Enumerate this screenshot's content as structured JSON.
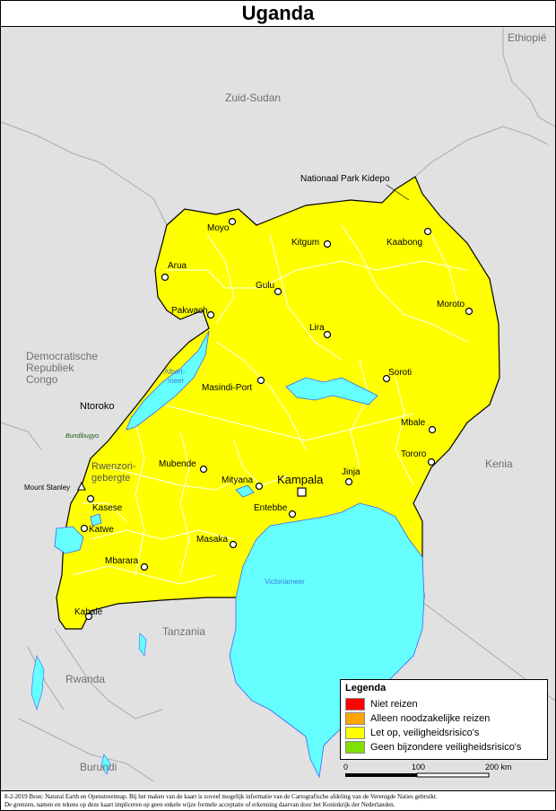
{
  "title": "Uganda",
  "countries": {
    "ethiopia": "Ethiopië",
    "south_sudan": "Zuid-Sudan",
    "drc_line1": "Democratische",
    "drc_line2": "Republiek",
    "drc_line3": "Congo",
    "kenya": "Kenia",
    "tanzania": "Tanzania",
    "rwanda": "Rwanda",
    "burundi": "Burundi"
  },
  "places": {
    "kidepo": "Nationaal Park Kidepo",
    "moyo": "Moyo",
    "arua": "Arua",
    "pakwach": "Pakwach",
    "gulu": "Gulu",
    "kitgum": "Kitgum",
    "kaabong": "Kaabong",
    "moroto": "Moroto",
    "lira": "Lira",
    "soroti": "Soroti",
    "masindi": "Masindi-Port",
    "mbale": "Mbale",
    "tororo": "Tororo",
    "ntoroko": "Ntoroko",
    "bundibugyo": "Bundibugyo",
    "rwenzori_line1": "Rwenzori-",
    "rwenzori_line2": "gebergte",
    "mount_stanley": "Mount Stanley",
    "mubende": "Mubende",
    "mityana": "Mityana",
    "kampala": "Kampala",
    "jinja": "Jinja",
    "entebbe": "Entebbe",
    "kasese": "Kasese",
    "katwe": "Katwe",
    "masaka": "Masaka",
    "mbarara": "Mbarara",
    "kabale": "Kabale"
  },
  "water": {
    "albert_line1": "Albert-",
    "albert_line2": "meer",
    "victoria": "Victoriameer"
  },
  "legend": {
    "title": "Legenda",
    "items": [
      {
        "label": "Niet reizen",
        "color": "#ff0000"
      },
      {
        "label": "Alleen noodzakelijke reizen",
        "color": "#ffa500"
      },
      {
        "label": "Let op, veiligheidsrisico's",
        "color": "#ffff00"
      },
      {
        "label": "Geen bijzondere veiligheidsrisico's",
        "color": "#80e000"
      }
    ]
  },
  "scale": {
    "ticks": [
      "0",
      "100",
      "200 km"
    ]
  },
  "colors": {
    "country_fill": "#ffff00",
    "background": "#e1e1e1",
    "lake": "#66ffff",
    "border": "#000000"
  },
  "footer": {
    "line1": "8-2-2019 Bron: Natural Earth en Openstreetmap. Bij het maken van de kaart is zoveel mogelijk informatie van de Cartografische afdeling van de Verenigde Naties gebruikt.",
    "line2": "De grenzen, namen en tekens op deze kaart impliceren op geen enkele wijze formele acceptatie of erkenning daarvan door het Koninkrijk der Nederlanden."
  }
}
